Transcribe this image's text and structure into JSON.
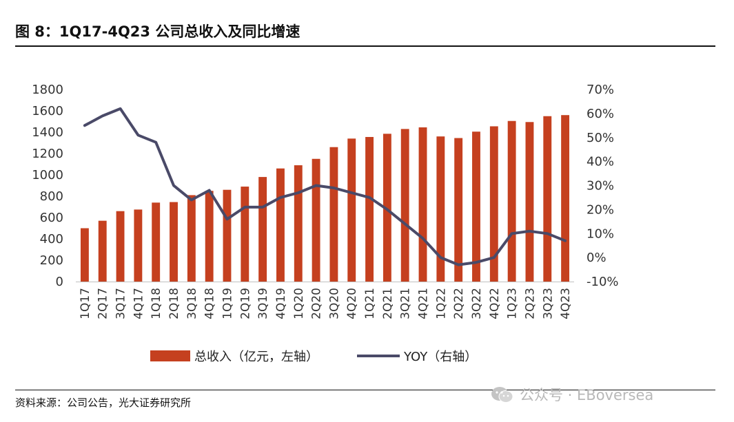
{
  "page": {
    "title": "图 8：1Q17-4Q23 公司总收入及同比增速",
    "source": "资料来源：公司公告，光大证券研究所",
    "watermark": "公众号 · EBoversea"
  },
  "colors": {
    "bar": "#C5401F",
    "line": "#4A4A68",
    "axis": "#bfbfbf",
    "text": "#333333"
  },
  "chart_data": {
    "type": "bar",
    "title": "1Q17-4Q23 公司总收入及同比增速",
    "categories": [
      "1Q17",
      "2Q17",
      "3Q17",
      "4Q17",
      "1Q18",
      "2Q18",
      "3Q18",
      "4Q18",
      "1Q19",
      "2Q19",
      "3Q19",
      "4Q19",
      "1Q20",
      "2Q20",
      "3Q20",
      "4Q20",
      "1Q21",
      "2Q21",
      "3Q21",
      "4Q21",
      "1Q22",
      "2Q22",
      "3Q22",
      "4Q22",
      "1Q23",
      "2Q23",
      "3Q23",
      "4Q23"
    ],
    "series": [
      {
        "name": "总收入（亿元，左轴）",
        "type": "bar",
        "axis": "left",
        "values": [
          500,
          570,
          660,
          675,
          740,
          745,
          810,
          850,
          860,
          890,
          980,
          1060,
          1090,
          1150,
          1260,
          1340,
          1355,
          1385,
          1430,
          1445,
          1360,
          1345,
          1405,
          1455,
          1505,
          1495,
          1550,
          1560
        ]
      },
      {
        "name": "YOY（右轴）",
        "type": "line",
        "axis": "right",
        "values": [
          55,
          59,
          62,
          51,
          48,
          30,
          24,
          28,
          16,
          21,
          21,
          25,
          27,
          30,
          29,
          27,
          25,
          20,
          14,
          8,
          0,
          -3,
          -2,
          0,
          10,
          11,
          10,
          7
        ]
      }
    ],
    "y_left": {
      "min": 0,
      "max": 1800,
      "ticks": [
        0,
        200,
        400,
        600,
        800,
        1000,
        1200,
        1400,
        1600,
        1800
      ]
    },
    "y_right": {
      "min": -10,
      "max": 70,
      "ticks": [
        "-10%",
        "0%",
        "10%",
        "20%",
        "30%",
        "40%",
        "50%",
        "60%",
        "70%"
      ]
    },
    "grid": false,
    "legend": "bottom"
  }
}
